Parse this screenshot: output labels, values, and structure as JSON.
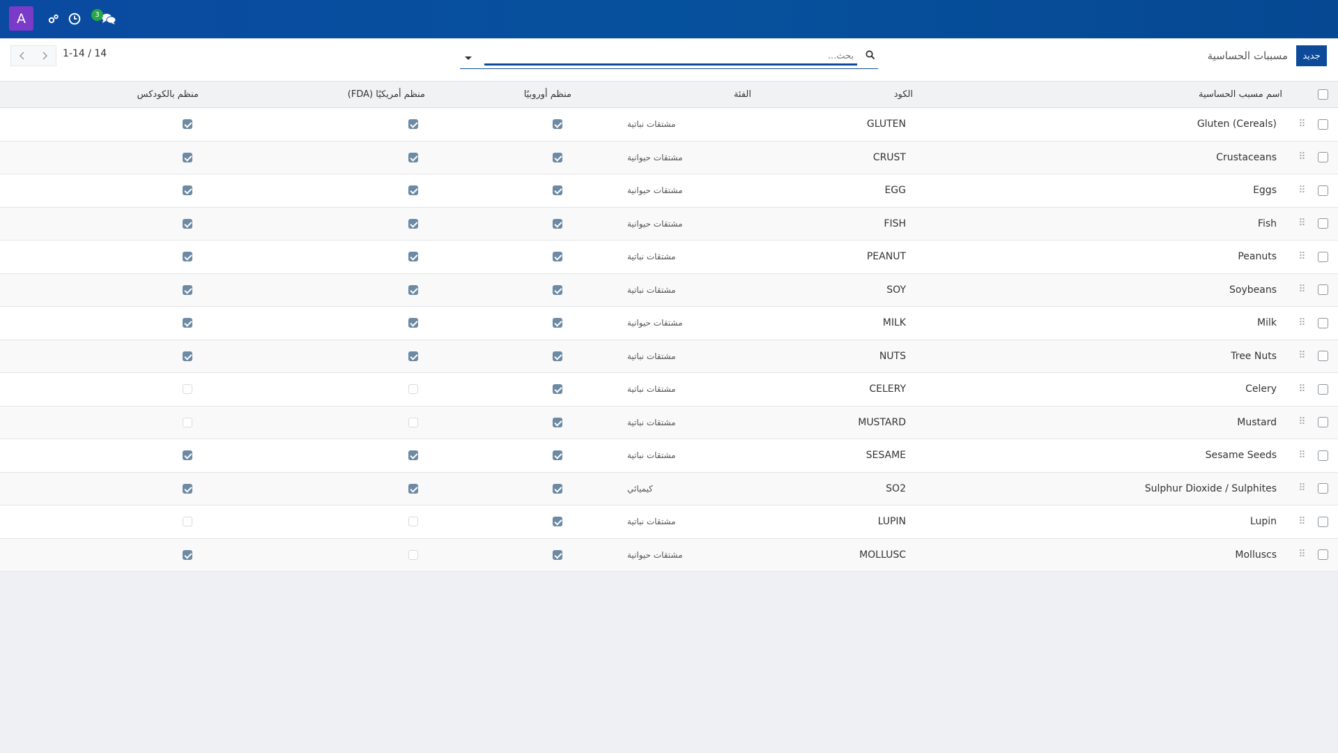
{
  "topbar": {
    "user_initial": "A",
    "messages_count": "3",
    "icons": [
      "debug-icon",
      "clock-icon",
      "chat-icon"
    ]
  },
  "control": {
    "breadcrumb": "مسببات الحساسية",
    "new_label": "جديد",
    "search_placeholder": "بحث...",
    "pager_text": "1-14 / 14"
  },
  "table": {
    "headers": {
      "name": "اسم مسبب الحساسية",
      "code": "الكود",
      "category": "الفئة",
      "eu": "منظم أوروبيًا",
      "fda": "منظم أمريكيًا (FDA)",
      "codex": "منظم بالكودكس"
    },
    "rows": [
      {
        "name": "Gluten (Cereals)",
        "code": "GLUTEN",
        "category": "مشتقات نباتية",
        "eu": true,
        "fda": true,
        "codex": true
      },
      {
        "name": "Crustaceans",
        "code": "CRUST",
        "category": "مشتقات حيوانية",
        "eu": true,
        "fda": true,
        "codex": true
      },
      {
        "name": "Eggs",
        "code": "EGG",
        "category": "مشتقات حيوانية",
        "eu": true,
        "fda": true,
        "codex": true
      },
      {
        "name": "Fish",
        "code": "FISH",
        "category": "مشتقات حيوانية",
        "eu": true,
        "fda": true,
        "codex": true
      },
      {
        "name": "Peanuts",
        "code": "PEANUT",
        "category": "مشتقات نباتية",
        "eu": true,
        "fda": true,
        "codex": true
      },
      {
        "name": "Soybeans",
        "code": "SOY",
        "category": "مشتقات نباتية",
        "eu": true,
        "fda": true,
        "codex": true
      },
      {
        "name": "Milk",
        "code": "MILK",
        "category": "مشتقات حيوانية",
        "eu": true,
        "fda": true,
        "codex": true
      },
      {
        "name": "Tree Nuts",
        "code": "NUTS",
        "category": "مشتقات نباتية",
        "eu": true,
        "fda": true,
        "codex": true
      },
      {
        "name": "Celery",
        "code": "CELERY",
        "category": "مشتقات نباتية",
        "eu": true,
        "fda": false,
        "codex": false
      },
      {
        "name": "Mustard",
        "code": "MUSTARD",
        "category": "مشتقات نباتية",
        "eu": true,
        "fda": false,
        "codex": false
      },
      {
        "name": "Sesame Seeds",
        "code": "SESAME",
        "category": "مشتقات نباتية",
        "eu": true,
        "fda": true,
        "codex": true
      },
      {
        "name": "Sulphur Dioxide / Sulphites",
        "code": "SO2",
        "category": "كيميائي",
        "eu": true,
        "fda": true,
        "codex": true
      },
      {
        "name": "Lupin",
        "code": "LUPIN",
        "category": "مشتقات نباتية",
        "eu": true,
        "fda": false,
        "codex": false
      },
      {
        "name": "Molluscs",
        "code": "MOLLUSC",
        "category": "مشتقات حيوانية",
        "eu": true,
        "fda": false,
        "codex": true
      }
    ]
  },
  "colors": {
    "topbar": "#0a4aa0",
    "avatar": "#7a3bc8",
    "primary": "#0d4b9a",
    "badge": "#28a745",
    "checked": "#6c8aa4"
  }
}
